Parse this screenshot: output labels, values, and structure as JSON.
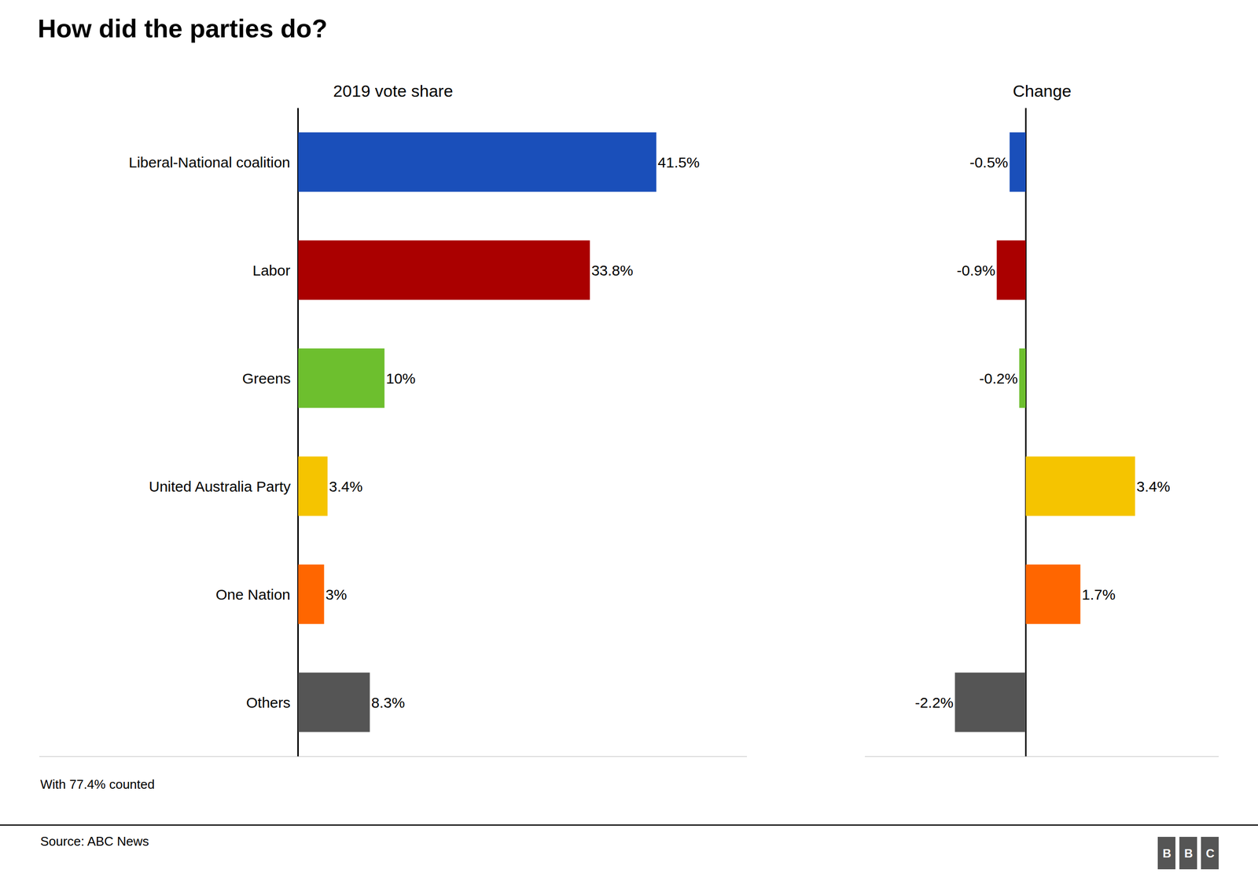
{
  "chart_data": [
    {
      "type": "bar",
      "orientation": "horizontal",
      "title": "How did the parties do?",
      "subtitle": "2019 vote share",
      "categories": [
        "Liberal-National coalition",
        "Labor",
        "Greens",
        "United Australia Party",
        "One Nation",
        "Others"
      ],
      "values": [
        41.5,
        33.8,
        10.0,
        3.4,
        3.0,
        8.3
      ],
      "value_labels": [
        "41.5%",
        "33.8%",
        "10%",
        "3.4%",
        "3%",
        "8.3%"
      ],
      "colors": [
        "#1a4fba",
        "#aa0000",
        "#6dbf2e",
        "#f5c400",
        "#ff6600",
        "#555555"
      ],
      "xlim": [
        -30,
        52
      ],
      "data_labels": true,
      "tick_labels": "y",
      "grid": false,
      "annotations": [
        "With 77.4% counted",
        "Source: ABC News",
        "BBC"
      ]
    },
    {
      "type": "bar",
      "orientation": "horizontal",
      "subtitle": "Change",
      "categories": [
        "Liberal-National coalition",
        "Labor",
        "Greens",
        "United Australia Party",
        "One Nation",
        "Others"
      ],
      "values": [
        -0.5,
        -0.9,
        -0.2,
        3.4,
        1.7,
        -2.2
      ],
      "value_labels": [
        "-0.5%",
        "-0.9%",
        "-0.2%",
        "3.4%",
        "1.7%",
        "-2.2%"
      ],
      "colors": [
        "#1a4fba",
        "#aa0000",
        "#6dbf2e",
        "#f5c400",
        "#ff6600",
        "#555555"
      ],
      "xlim": [
        -5,
        6
      ],
      "data_labels": true,
      "tick_labels": false,
      "grid": false
    }
  ]
}
